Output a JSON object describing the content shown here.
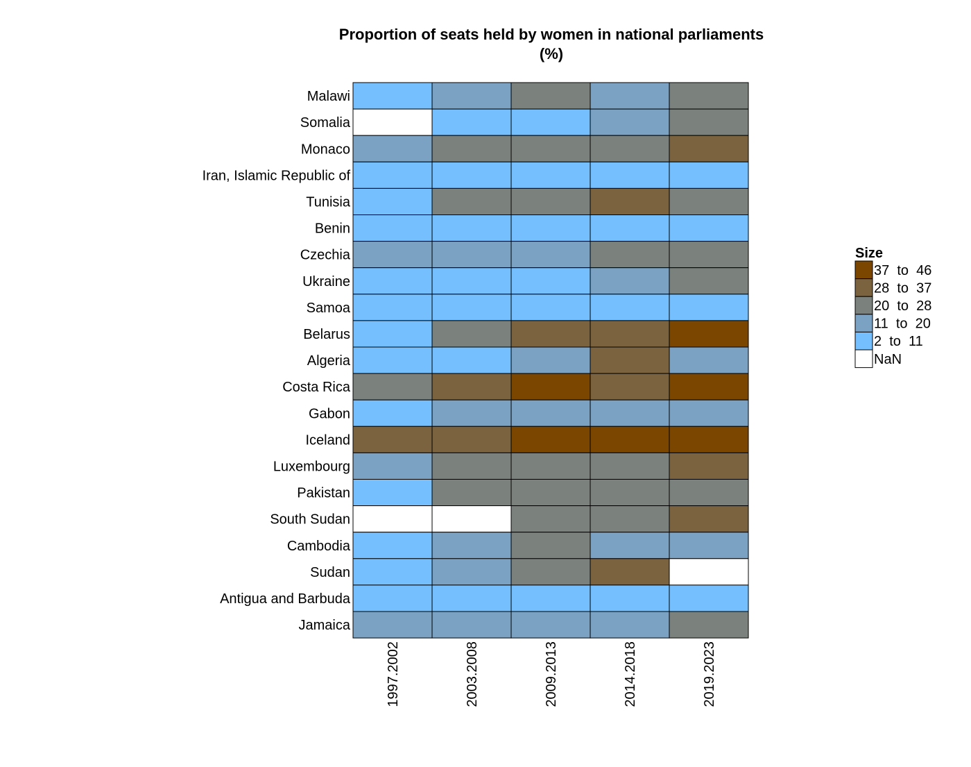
{
  "chart_data": {
    "type": "heatmap",
    "title": "Proportion of seats held by women in national parliaments",
    "subtitle": "(%)",
    "xlabel": "",
    "ylabel": "",
    "columns": [
      "1997.2002",
      "2003.2008",
      "2009.2013",
      "2014.2018",
      "2019.2023"
    ],
    "rows": [
      "Malawi",
      "Somalia",
      "Monaco",
      "Iran, Islamic Republic of",
      "Tunisia",
      "Benin",
      "Czechia",
      "Ukraine",
      "Samoa",
      "Belarus",
      "Algeria",
      "Costa Rica",
      "Gabon",
      "Iceland",
      "Luxembourg",
      "Pakistan",
      "South Sudan",
      "Cambodia",
      "Sudan",
      "Antigua and Barbuda",
      "Jamaica"
    ],
    "cells": [
      [
        "2 to 11",
        "11 to 20",
        "20 to 28",
        "11 to 20",
        "20 to 28"
      ],
      [
        "NaN",
        "2 to 11",
        "2 to 11",
        "11 to 20",
        "20 to 28"
      ],
      [
        "11 to 20",
        "20 to 28",
        "20 to 28",
        "20 to 28",
        "28 to 37"
      ],
      [
        "2 to 11",
        "2 to 11",
        "2 to 11",
        "2 to 11",
        "2 to 11"
      ],
      [
        "2 to 11",
        "20 to 28",
        "20 to 28",
        "28 to 37",
        "20 to 28"
      ],
      [
        "2 to 11",
        "2 to 11",
        "2 to 11",
        "2 to 11",
        "2 to 11"
      ],
      [
        "11 to 20",
        "11 to 20",
        "11 to 20",
        "20 to 28",
        "20 to 28"
      ],
      [
        "2 to 11",
        "2 to 11",
        "2 to 11",
        "11 to 20",
        "20 to 28"
      ],
      [
        "2 to 11",
        "2 to 11",
        "2 to 11",
        "2 to 11",
        "2 to 11"
      ],
      [
        "2 to 11",
        "20 to 28",
        "28 to 37",
        "28 to 37",
        "37 to 46"
      ],
      [
        "2 to 11",
        "2 to 11",
        "11 to 20",
        "28 to 37",
        "11 to 20"
      ],
      [
        "20 to 28",
        "28 to 37",
        "37 to 46",
        "28 to 37",
        "37 to 46"
      ],
      [
        "2 to 11",
        "11 to 20",
        "11 to 20",
        "11 to 20",
        "11 to 20"
      ],
      [
        "28 to 37",
        "28 to 37",
        "37 to 46",
        "37 to 46",
        "37 to 46"
      ],
      [
        "11 to 20",
        "20 to 28",
        "20 to 28",
        "20 to 28",
        "28 to 37"
      ],
      [
        "2 to 11",
        "20 to 28",
        "20 to 28",
        "20 to 28",
        "20 to 28"
      ],
      [
        "NaN",
        "NaN",
        "20 to 28",
        "20 to 28",
        "28 to 37"
      ],
      [
        "2 to 11",
        "11 to 20",
        "20 to 28",
        "11 to 20",
        "11 to 20"
      ],
      [
        "2 to 11",
        "11 to 20",
        "20 to 28",
        "28 to 37",
        "NaN"
      ],
      [
        "2 to 11",
        "2 to 11",
        "2 to 11",
        "2 to 11",
        "2 to 11"
      ],
      [
        "11 to 20",
        "11 to 20",
        "11 to 20",
        "11 to 20",
        "20 to 28"
      ]
    ],
    "legend": {
      "title": "Size",
      "placement": "right",
      "items": [
        {
          "label": "37  to  46",
          "bin": "37 to 46",
          "color": "#7b4600"
        },
        {
          "label": "28  to  37",
          "bin": "28 to 37",
          "color": "#7b6340"
        },
        {
          "label": "20  to  28",
          "bin": "20 to 28",
          "color": "#7b827d"
        },
        {
          "label": "11  to  20",
          "bin": "11 to 20",
          "color": "#7ba2c3"
        },
        {
          "label": "2  to  11",
          "bin": "2 to 11",
          "color": "#75bffe"
        },
        {
          "label": "NaN",
          "bin": "NaN",
          "color": "#ffffff"
        }
      ]
    }
  }
}
